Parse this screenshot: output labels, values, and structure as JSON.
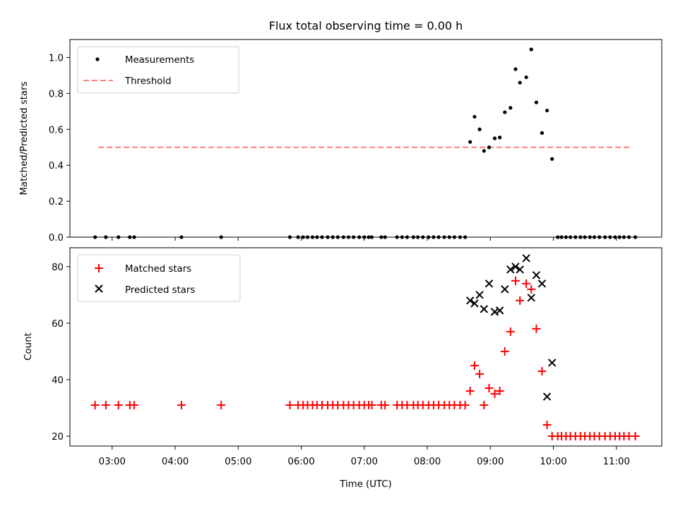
{
  "chart_data": {
    "title": "Flux total observing time = 0.00 h",
    "xlabel": "Time (UTC)",
    "x_ticks": [
      "03:00",
      "04:00",
      "05:00",
      "06:00",
      "07:00",
      "08:00",
      "09:00",
      "10:00",
      "11:00"
    ],
    "x_tick_hours": [
      3,
      4,
      5,
      6,
      7,
      8,
      9,
      10,
      11
    ],
    "xlim_hours": [
      2.33,
      11.72
    ],
    "panels": [
      {
        "type": "scatter",
        "ylabel": "Matched/Predicted stars",
        "ylim": [
          0,
          1.1
        ],
        "y_ticks": [
          "0.0",
          "0.2",
          "0.4",
          "0.6",
          "0.8",
          "1.0"
        ],
        "y_tick_values": [
          0,
          0.2,
          0.4,
          0.6,
          0.8,
          1.0
        ],
        "legend_position": "upper-left",
        "threshold": {
          "name": "Threshold",
          "value": 0.5,
          "x_range_hours": [
            2.78,
            11.25
          ],
          "color": "#ff7f7f"
        },
        "series": [
          {
            "name": "Measurements",
            "color": "#000000",
            "marker": "dot",
            "x_hours": [
              2.73,
              2.9,
              3.1,
              3.28,
              3.35,
              4.1,
              4.73,
              5.82,
              5.95,
              6.03,
              6.1,
              6.18,
              6.25,
              6.33,
              6.42,
              6.5,
              6.58,
              6.67,
              6.75,
              6.83,
              6.92,
              7.0,
              7.07,
              7.12,
              7.27,
              7.33,
              7.52,
              7.6,
              7.68,
              7.78,
              7.85,
              7.93,
              8.02,
              8.1,
              8.18,
              8.27,
              8.35,
              8.43,
              8.52,
              8.6,
              8.68,
              8.75,
              8.83,
              8.9,
              8.98,
              9.07,
              9.15,
              9.23,
              9.32,
              9.4,
              9.47,
              9.57,
              9.65,
              9.73,
              9.82,
              9.9,
              9.98,
              10.07,
              10.13,
              10.2,
              10.27,
              10.35,
              10.43,
              10.5,
              10.58,
              10.65,
              10.73,
              10.82,
              10.9,
              10.98,
              11.05,
              11.12,
              11.2,
              11.3
            ],
            "y": [
              0,
              0,
              0,
              0,
              0,
              0,
              0,
              0,
              0,
              0,
              0,
              0,
              0,
              0,
              0,
              0,
              0,
              0,
              0,
              0,
              0,
              0,
              0,
              0,
              0,
              0,
              0,
              0,
              0,
              0,
              0,
              0,
              0,
              0,
              0,
              0,
              0,
              0,
              0,
              0,
              0.53,
              0.67,
              0.6,
              0.48,
              0.5,
              0.55,
              0.555,
              0.695,
              0.72,
              0.935,
              0.86,
              0.89,
              1.045,
              0.75,
              0.58,
              0.705,
              0.435,
              0,
              0,
              0,
              0,
              0,
              0,
              0,
              0,
              0,
              0,
              0,
              0,
              0,
              0,
              0,
              0,
              0
            ]
          }
        ]
      },
      {
        "type": "scatter",
        "ylabel": "Count",
        "ylim": [
          16.5,
          86.7
        ],
        "y_ticks": [
          "20",
          "40",
          "60",
          "80"
        ],
        "y_tick_values": [
          20,
          40,
          60,
          80
        ],
        "legend_position": "upper-left",
        "series": [
          {
            "name": "Matched stars",
            "color": "#ff0000",
            "marker": "plus",
            "x_hours": [
              2.73,
              2.9,
              3.1,
              3.28,
              3.35,
              4.1,
              4.73,
              5.82,
              5.95,
              6.03,
              6.1,
              6.18,
              6.25,
              6.33,
              6.42,
              6.5,
              6.58,
              6.67,
              6.75,
              6.83,
              6.92,
              7.0,
              7.07,
              7.12,
              7.27,
              7.33,
              7.52,
              7.6,
              7.68,
              7.78,
              7.85,
              7.93,
              8.02,
              8.1,
              8.18,
              8.27,
              8.35,
              8.43,
              8.52,
              8.6,
              8.68,
              8.75,
              8.83,
              8.9,
              8.98,
              9.07,
              9.15,
              9.23,
              9.32,
              9.4,
              9.47,
              9.57,
              9.65,
              9.73,
              9.82,
              9.9,
              9.98,
              10.07,
              10.13,
              10.2,
              10.27,
              10.35,
              10.43,
              10.5,
              10.58,
              10.65,
              10.73,
              10.82,
              10.9,
              10.98,
              11.05,
              11.12,
              11.2,
              11.3
            ],
            "y": [
              31,
              31,
              31,
              31,
              31,
              31,
              31,
              31,
              31,
              31,
              31,
              31,
              31,
              31,
              31,
              31,
              31,
              31,
              31,
              31,
              31,
              31,
              31,
              31,
              31,
              31,
              31,
              31,
              31,
              31,
              31,
              31,
              31,
              31,
              31,
              31,
              31,
              31,
              31,
              31,
              36,
              45,
              42,
              31,
              37,
              35,
              36,
              50,
              57,
              75,
              68,
              74,
              72,
              58,
              43,
              24,
              20,
              20,
              20,
              20,
              20,
              20,
              20,
              20,
              20,
              20,
              20,
              20,
              20,
              20,
              20,
              20,
              20,
              20
            ]
          },
          {
            "name": "Predicted stars",
            "color": "#000000",
            "marker": "x",
            "x_hours": [
              8.68,
              8.75,
              8.83,
              8.9,
              8.98,
              9.07,
              9.15,
              9.23,
              9.32,
              9.4,
              9.47,
              9.57,
              9.65,
              9.73,
              9.82,
              9.9,
              9.98
            ],
            "y": [
              68,
              67,
              70,
              65,
              74,
              64,
              64.5,
              72,
              79,
              80,
              79,
              83,
              69,
              77,
              74,
              34,
              46
            ]
          }
        ]
      }
    ]
  }
}
